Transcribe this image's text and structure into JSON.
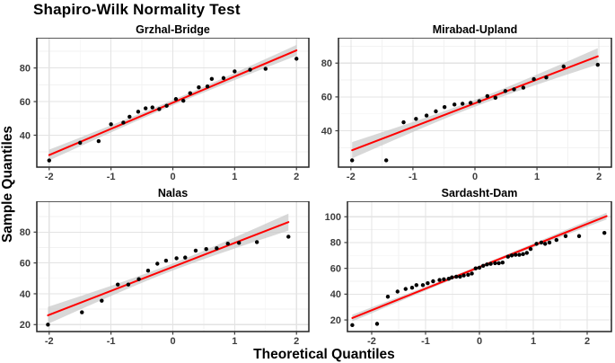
{
  "figure": {
    "title": "Shapiro-Wilk Normality Test",
    "xlabel": "Theoretical Quantiles",
    "ylabel": "Sample Quantiles"
  },
  "style": {
    "fit_line_color": "#ff0000",
    "band_color": "#c8c8c8",
    "band_opacity": 0.7,
    "point_color": "#000000",
    "grid_major_color": "#e3e3e3",
    "grid_minor_color": "#f2f2f2",
    "panel_border_color": "#222222",
    "tick_label_color": "#3d3d3d",
    "title_color": "#000000",
    "background_color": "#ffffff"
  },
  "chart_data": [
    {
      "type": "scatter",
      "title": "Grzhal-Bridge",
      "x": [
        -2.0,
        -1.5,
        -1.2,
        -1.0,
        -0.8,
        -0.7,
        -0.56,
        -0.44,
        -0.33,
        -0.22,
        -0.1,
        0.05,
        0.17,
        0.28,
        0.42,
        0.56,
        0.63,
        0.82,
        1.0,
        1.25,
        1.5,
        2.0
      ],
      "y": [
        25,
        35.5,
        36.5,
        46.5,
        47.5,
        51,
        54,
        56,
        56.5,
        55.5,
        57.5,
        61.5,
        60.5,
        65,
        68.5,
        69,
        73.5,
        74,
        78,
        79,
        79.5,
        85.5
      ],
      "fit_line": {
        "x1": -2.0,
        "y1": 28.2,
        "x2": 2.0,
        "y2": 90.5
      },
      "band": {
        "mid_halfwidth": 1.6,
        "end_halfwidth": 3.2
      },
      "xlim": [
        -2.2,
        2.2
      ],
      "ylim": [
        21,
        98
      ],
      "x_ticks": [
        -2,
        -1,
        0,
        1,
        2
      ],
      "y_ticks": [
        40,
        60,
        80
      ],
      "x_minor": [
        -1.5,
        -0.5,
        0.5,
        1.5
      ],
      "y_minor": [
        30,
        50,
        70,
        90
      ],
      "grid": true
    },
    {
      "type": "scatter",
      "title": "Mirabad-Upland",
      "x": [
        -1.98,
        -1.43,
        -1.15,
        -0.95,
        -0.78,
        -0.63,
        -0.49,
        -0.33,
        -0.2,
        -0.07,
        0.07,
        0.2,
        0.33,
        0.49,
        0.63,
        0.78,
        0.95,
        1.15,
        1.43,
        1.98
      ],
      "y": [
        22.5,
        22.5,
        45,
        47,
        49,
        51.5,
        54,
        55.5,
        56,
        56.5,
        57.5,
        60.5,
        59.5,
        63.5,
        64.5,
        65.5,
        70.5,
        71.5,
        78,
        79
      ],
      "fit_line": {
        "x1": -1.98,
        "y1": 28.5,
        "x2": 1.98,
        "y2": 84
      },
      "band": {
        "mid_halfwidth": 2.0,
        "end_halfwidth": 4.8
      },
      "xlim": [
        -2.2,
        2.2
      ],
      "ylim": [
        18.5,
        95
      ],
      "x_ticks": [
        -2,
        -1,
        0,
        1,
        2
      ],
      "y_ticks": [
        40,
        60,
        80
      ],
      "x_minor": [
        -1.5,
        -0.5,
        0.5,
        1.5
      ],
      "y_minor": [
        30,
        50,
        70,
        90
      ],
      "grid": true
    },
    {
      "type": "scatter",
      "title": "Nalas",
      "x": [
        -2.02,
        -1.47,
        -1.15,
        -0.89,
        -0.72,
        -0.55,
        -0.4,
        -0.25,
        -0.11,
        0.06,
        0.2,
        0.37,
        0.54,
        0.71,
        0.89,
        1.07,
        1.36,
        1.87
      ],
      "y": [
        20,
        28,
        35.5,
        46,
        46,
        49.5,
        55,
        59.5,
        61.5,
        63,
        63.5,
        68,
        69,
        69.5,
        72.5,
        73,
        73.5,
        77
      ],
      "fit_line": {
        "x1": -2.02,
        "y1": 26,
        "x2": 1.87,
        "y2": 86.5
      },
      "band": {
        "mid_halfwidth": 2.3,
        "end_halfwidth": 5.5
      },
      "xlim": [
        -2.2,
        2.2
      ],
      "ylim": [
        15.5,
        100
      ],
      "x_ticks": [
        -2,
        -1,
        0,
        1,
        2
      ],
      "y_ticks": [
        20,
        40,
        60,
        80
      ],
      "x_minor": [
        -1.5,
        -0.5,
        0.5,
        1.5
      ],
      "y_minor": [
        30,
        50,
        70,
        90
      ],
      "grid": true
    },
    {
      "type": "scatter",
      "title": "Sardasht-Dam",
      "x": [
        -2.36,
        -1.9,
        -1.7,
        -1.52,
        -1.37,
        -1.25,
        -1.17,
        -1.05,
        -0.96,
        -0.86,
        -0.74,
        -0.66,
        -0.57,
        -0.51,
        -0.43,
        -0.36,
        -0.29,
        -0.21,
        -0.14,
        -0.07,
        0.0,
        0.07,
        0.14,
        0.21,
        0.29,
        0.36,
        0.43,
        0.53,
        0.6,
        0.67,
        0.74,
        0.81,
        0.88,
        0.95,
        1.06,
        1.15,
        1.22,
        1.3,
        1.43,
        1.6,
        1.85,
        2.32
      ],
      "y": [
        16,
        17,
        38,
        42,
        44,
        45,
        47,
        47,
        48.5,
        50,
        51,
        51.5,
        52,
        53,
        53.5,
        53.5,
        54.5,
        55,
        56,
        60,
        60.5,
        62,
        63,
        63.5,
        64,
        64,
        64.5,
        69,
        70,
        70.5,
        70.5,
        71,
        72,
        75,
        79,
        80,
        79,
        80,
        82,
        85,
        85,
        87.5
      ],
      "fit_line": {
        "x1": -2.36,
        "y1": 21.5,
        "x2": 2.36,
        "y2": 100.5
      },
      "band": {
        "mid_halfwidth": 1.2,
        "end_halfwidth": 2.6
      },
      "xlim": [
        -2.45,
        2.45
      ],
      "ylim": [
        11,
        112
      ],
      "x_ticks": [
        -2,
        -1,
        0,
        1,
        2
      ],
      "y_ticks": [
        20,
        40,
        60,
        80,
        100
      ],
      "x_minor": [
        -1.5,
        -0.5,
        0.5,
        1.5
      ],
      "y_minor": [
        30,
        50,
        70,
        90
      ],
      "grid": true
    }
  ]
}
